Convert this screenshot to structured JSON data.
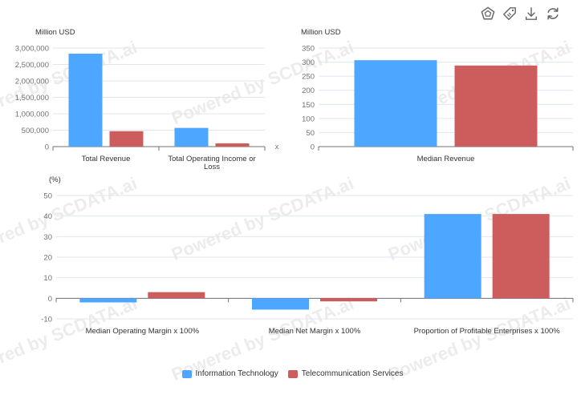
{
  "toolbar": {
    "icons": [
      "chart-type-icon",
      "tag-icon",
      "download-icon",
      "refresh-icon"
    ]
  },
  "colors": {
    "series1": "#4da6ff",
    "series2": "#cd5c5c",
    "grid": "#e0e6f1",
    "axis": "#6e7079",
    "watermark": "#ececec"
  },
  "watermark_text": "Powered by SCDATA.ai",
  "legend": [
    {
      "name": "Information Technology",
      "color": "#4da6ff"
    },
    {
      "name": "Telecommunication Services",
      "color": "#cd5c5c"
    }
  ],
  "chart_data": [
    {
      "type": "bar",
      "ylabel": "Million USD",
      "xlabel": "x",
      "categories": [
        "Total Revenue",
        "Total Operating Income or Loss"
      ],
      "series": [
        {
          "name": "Information Technology",
          "values": [
            2830000,
            570000
          ]
        },
        {
          "name": "Telecommunication Services",
          "values": [
            470000,
            100000
          ]
        }
      ],
      "ylim": [
        0,
        3000000
      ],
      "yticks": [
        0,
        500000,
        1000000,
        1500000,
        2000000,
        2500000,
        3000000
      ],
      "ytick_labels": [
        "0",
        "500,000",
        "1,000,000",
        "1,500,000",
        "2,000,000",
        "2,500,000",
        "3,000,000"
      ],
      "grid": true
    },
    {
      "type": "bar",
      "ylabel": "Million USD",
      "categories": [
        "Median Revenue"
      ],
      "series": [
        {
          "name": "Information Technology",
          "values": [
            307
          ]
        },
        {
          "name": "Telecommunication Services",
          "values": [
            288
          ]
        }
      ],
      "ylim": [
        0,
        350
      ],
      "yticks": [
        0,
        50,
        100,
        150,
        200,
        250,
        300,
        350
      ],
      "ytick_labels": [
        "0",
        "50",
        "100",
        "150",
        "200",
        "250",
        "300",
        "350"
      ],
      "grid": true
    },
    {
      "type": "bar",
      "ylabel": "(%)",
      "categories": [
        "Median Operating Margin x 100%",
        "Median Net Margin x 100%",
        "Proportion of Profitable Enterprises x 100%"
      ],
      "series": [
        {
          "name": "Information Technology",
          "values": [
            -2,
            -5.5,
            41
          ]
        },
        {
          "name": "Telecommunication Services",
          "values": [
            3,
            -1.5,
            41
          ]
        }
      ],
      "ylim": [
        -10,
        50
      ],
      "yticks": [
        -10,
        0,
        10,
        20,
        30,
        40,
        50
      ],
      "ytick_labels": [
        "-10",
        "0",
        "10",
        "20",
        "30",
        "40",
        "50"
      ],
      "grid": true
    }
  ]
}
